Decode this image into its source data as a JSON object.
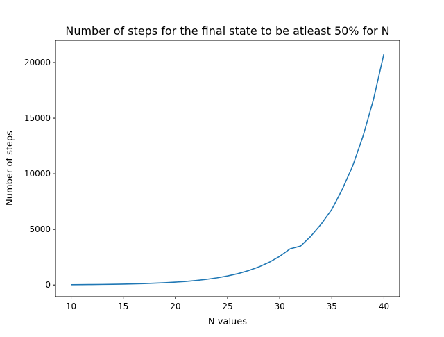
{
  "chart_data": {
    "type": "line",
    "title": "Number of steps for the final state to be atleast 50% for N",
    "xlabel": "N values",
    "ylabel": "Number of steps",
    "xlim": [
      8.5,
      41.5
    ],
    "ylim": [
      -1050,
      22000
    ],
    "xticks": [
      10,
      15,
      20,
      25,
      30,
      35,
      40
    ],
    "yticks": [
      0,
      5000,
      10000,
      15000,
      20000
    ],
    "grid": false,
    "line_color": "#1f77b4",
    "series": [
      {
        "x": [
          10,
          11,
          12,
          13,
          14,
          15,
          16,
          17,
          18,
          19,
          20,
          21,
          22,
          23,
          24,
          25,
          26,
          27,
          28,
          29,
          30,
          31,
          32,
          33,
          34,
          35,
          36,
          37,
          38,
          39,
          40
        ],
        "values": [
          25,
          31,
          40,
          51,
          64,
          81,
          102,
          128,
          161,
          203,
          256,
          322,
          406,
          512,
          644,
          812,
          1024,
          1290,
          1625,
          2048,
          2580,
          3250,
          3500,
          4400,
          5500,
          6800,
          8600,
          10700,
          13400,
          16700,
          20800
        ]
      }
    ]
  }
}
